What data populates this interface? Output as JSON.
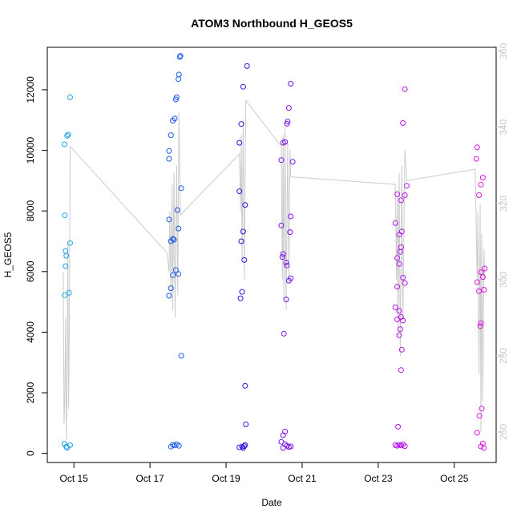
{
  "chart_data": {
    "type": "scatter",
    "title": "ATOM3 Northbound H_GEOS5",
    "xlabel": "Date",
    "ylabel": "H_GEOS5",
    "x_ticks": [
      "Oct 15",
      "Oct 17",
      "Oct 19",
      "Oct 21",
      "Oct 23",
      "Oct 25"
    ],
    "x_tick_days": [
      15,
      17,
      19,
      21,
      23,
      25
    ],
    "xlim_days": [
      14.3,
      26.1
    ],
    "y_ticks": [
      "0",
      "2000",
      "4000",
      "6000",
      "8000",
      "10000",
      "12000"
    ],
    "y_tick_values": [
      0,
      2000,
      4000,
      6000,
      8000,
      10000,
      12000
    ],
    "ylim": [
      -300,
      13400
    ],
    "y2_ticks": [
      "260",
      "280",
      "300",
      "320",
      "340",
      "360"
    ],
    "y2_tick_values": [
      260,
      280,
      300,
      320,
      340,
      360
    ],
    "y2lim": [
      252,
      361
    ],
    "grid": false,
    "colors": {
      "line": "#cccccc",
      "right_axis": "#c8c8c8",
      "group_0": "#1ea0e6",
      "group_1": "#1e5ae6",
      "group_2": "#3214dc",
      "group_3": "#7814e6",
      "group_4": "#b414e6",
      "group_5": "#dc14dc"
    },
    "series": [
      {
        "values_axis": "left",
        "groups": [
          {
            "color_key": "group_0",
            "points": [
              [
                14.75,
                10200
              ],
              [
                14.82,
                10480
              ],
              [
                14.85,
                10520
              ],
              [
                14.9,
                11750
              ],
              [
                14.76,
                7850
              ],
              [
                14.78,
                6680
              ],
              [
                14.8,
                6520
              ],
              [
                14.78,
                6180
              ],
              [
                14.9,
                6940
              ],
              [
                14.87,
                5300
              ],
              [
                14.76,
                5220
              ],
              [
                14.75,
                320
              ],
              [
                14.8,
                220
              ],
              [
                14.9,
                270
              ],
              [
                14.82,
                190
              ]
            ]
          },
          {
            "color_key": "group_1",
            "points": [
              [
                17.5,
                9720
              ],
              [
                17.5,
                9980
              ],
              [
                17.55,
                10500
              ],
              [
                17.6,
                10980
              ],
              [
                17.65,
                11050
              ],
              [
                17.68,
                11680
              ],
              [
                17.7,
                11750
              ],
              [
                17.75,
                12350
              ],
              [
                17.76,
                12500
              ],
              [
                17.78,
                13080
              ],
              [
                17.8,
                13120
              ],
              [
                17.82,
                8750
              ],
              [
                17.5,
                7720
              ],
              [
                17.72,
                8030
              ],
              [
                17.75,
                7420
              ],
              [
                17.6,
                7080
              ],
              [
                17.63,
                7050
              ],
              [
                17.55,
                7000
              ],
              [
                17.68,
                6050
              ],
              [
                17.75,
                5920
              ],
              [
                17.6,
                5880
              ],
              [
                17.55,
                5450
              ],
              [
                17.5,
                5200
              ],
              [
                17.82,
                3220
              ],
              [
                17.55,
                220
              ],
              [
                17.6,
                280
              ],
              [
                17.65,
                260
              ],
              [
                17.7,
                300
              ],
              [
                17.76,
                250
              ]
            ]
          },
          {
            "color_key": "group_2",
            "points": [
              [
                19.35,
                10250
              ],
              [
                19.4,
                10870
              ],
              [
                19.45,
                12100
              ],
              [
                19.55,
                12780
              ],
              [
                19.35,
                8650
              ],
              [
                19.5,
                8200
              ],
              [
                19.45,
                7320
              ],
              [
                19.4,
                7000
              ],
              [
                19.48,
                6380
              ],
              [
                19.42,
                5330
              ],
              [
                19.38,
                5120
              ],
              [
                19.5,
                2230
              ],
              [
                19.52,
                960
              ],
              [
                19.35,
                200
              ],
              [
                19.42,
                220
              ],
              [
                19.48,
                240
              ],
              [
                19.5,
                280
              ],
              [
                19.45,
                180
              ]
            ]
          },
          {
            "color_key": "group_3",
            "points": [
              [
                20.5,
                10250
              ],
              [
                20.55,
                10280
              ],
              [
                20.6,
                10880
              ],
              [
                20.62,
                10950
              ],
              [
                20.65,
                11400
              ],
              [
                20.7,
                12200
              ],
              [
                20.75,
                9620
              ],
              [
                20.45,
                9680
              ],
              [
                20.7,
                7820
              ],
              [
                20.45,
                7520
              ],
              [
                20.68,
                7300
              ],
              [
                20.5,
                6580
              ],
              [
                20.48,
                6480
              ],
              [
                20.58,
                6300
              ],
              [
                20.6,
                6200
              ],
              [
                20.7,
                5780
              ],
              [
                20.65,
                5700
              ],
              [
                20.58,
                5080
              ],
              [
                20.52,
                3950
              ],
              [
                20.55,
                720
              ],
              [
                20.5,
                600
              ],
              [
                20.45,
                380
              ],
              [
                20.55,
                300
              ],
              [
                20.6,
                250
              ],
              [
                20.65,
                210
              ],
              [
                20.7,
                230
              ],
              [
                20.5,
                180
              ]
            ]
          },
          {
            "color_key": "group_4",
            "points": [
              [
                23.5,
                8550
              ],
              [
                23.6,
                8350
              ],
              [
                23.7,
                8520
              ],
              [
                23.75,
                8830
              ],
              [
                23.65,
                10900
              ],
              [
                23.7,
                12020
              ],
              [
                23.45,
                7600
              ],
              [
                23.55,
                7220
              ],
              [
                23.62,
                7320
              ],
              [
                23.5,
                6450
              ],
              [
                23.58,
                6650
              ],
              [
                23.6,
                6800
              ],
              [
                23.55,
                6250
              ],
              [
                23.65,
                5800
              ],
              [
                23.7,
                5620
              ],
              [
                23.5,
                5500
              ],
              [
                23.45,
                4820
              ],
              [
                23.55,
                4700
              ],
              [
                23.6,
                4500
              ],
              [
                23.5,
                4420
              ],
              [
                23.65,
                4380
              ],
              [
                23.58,
                4100
              ],
              [
                23.55,
                3900
              ],
              [
                23.62,
                3420
              ],
              [
                23.6,
                2750
              ],
              [
                23.52,
                880
              ],
              [
                23.45,
                270
              ],
              [
                23.5,
                250
              ],
              [
                23.55,
                280
              ],
              [
                23.6,
                260
              ],
              [
                23.65,
                300
              ],
              [
                23.7,
                240
              ]
            ]
          },
          {
            "color_key": "group_5",
            "points": [
              [
                25.6,
                10100
              ],
              [
                25.58,
                9720
              ],
              [
                25.75,
                9100
              ],
              [
                25.7,
                8870
              ],
              [
                25.65,
                8520
              ],
              [
                25.8,
                6100
              ],
              [
                25.7,
                5980
              ],
              [
                25.75,
                5820
              ],
              [
                25.6,
                5650
              ],
              [
                25.65,
                5350
              ],
              [
                25.78,
                5400
              ],
              [
                25.7,
                4300
              ],
              [
                25.68,
                4200
              ],
              [
                25.72,
                1480
              ],
              [
                25.66,
                1240
              ],
              [
                25.6,
                680
              ],
              [
                25.75,
                330
              ],
              [
                25.7,
                230
              ],
              [
                25.78,
                180
              ]
            ]
          }
        ]
      },
      {
        "values_axis": "right",
        "line": [
          [
            14.72,
            302
          ],
          [
            14.74,
            262
          ],
          [
            14.76,
            268
          ],
          [
            14.78,
            290
          ],
          [
            14.8,
            258
          ],
          [
            14.82,
            272
          ],
          [
            14.84,
            310
          ],
          [
            14.86,
            266
          ],
          [
            14.88,
            290
          ],
          [
            14.9,
            335
          ],
          [
            17.45,
            307
          ],
          [
            17.5,
            302
          ],
          [
            17.52,
            318
          ],
          [
            17.55,
            295
          ],
          [
            17.58,
            325
          ],
          [
            17.6,
            292
          ],
          [
            17.63,
            328
          ],
          [
            17.66,
            290
          ],
          [
            17.7,
            330
          ],
          [
            17.73,
            296
          ],
          [
            17.76,
            344
          ],
          [
            17.8,
            317
          ],
          [
            19.35,
            333
          ],
          [
            19.38,
            318
          ],
          [
            19.4,
            338
          ],
          [
            19.42,
            305
          ],
          [
            19.45,
            342
          ],
          [
            19.48,
            300
          ],
          [
            19.52,
            347
          ],
          [
            20.45,
            335
          ],
          [
            20.48,
            300
          ],
          [
            20.5,
            338
          ],
          [
            20.52,
            295
          ],
          [
            20.55,
            340
          ],
          [
            20.58,
            292
          ],
          [
            20.62,
            336
          ],
          [
            20.65,
            300
          ],
          [
            20.68,
            334
          ],
          [
            20.7,
            327
          ],
          [
            23.45,
            325
          ],
          [
            23.48,
            300
          ],
          [
            23.5,
            322
          ],
          [
            23.52,
            285
          ],
          [
            23.55,
            328
          ],
          [
            23.58,
            280
          ],
          [
            23.62,
            330
          ],
          [
            23.65,
            290
          ],
          [
            23.7,
            334
          ],
          [
            23.75,
            326
          ],
          [
            25.55,
            329
          ],
          [
            25.6,
            300
          ],
          [
            25.62,
            318
          ],
          [
            25.65,
            275
          ],
          [
            25.68,
            320
          ],
          [
            25.7,
            260
          ],
          [
            25.72,
            312
          ],
          [
            25.75,
            268
          ],
          [
            25.78,
            308
          ],
          [
            25.8,
            300
          ]
        ]
      }
    ]
  }
}
